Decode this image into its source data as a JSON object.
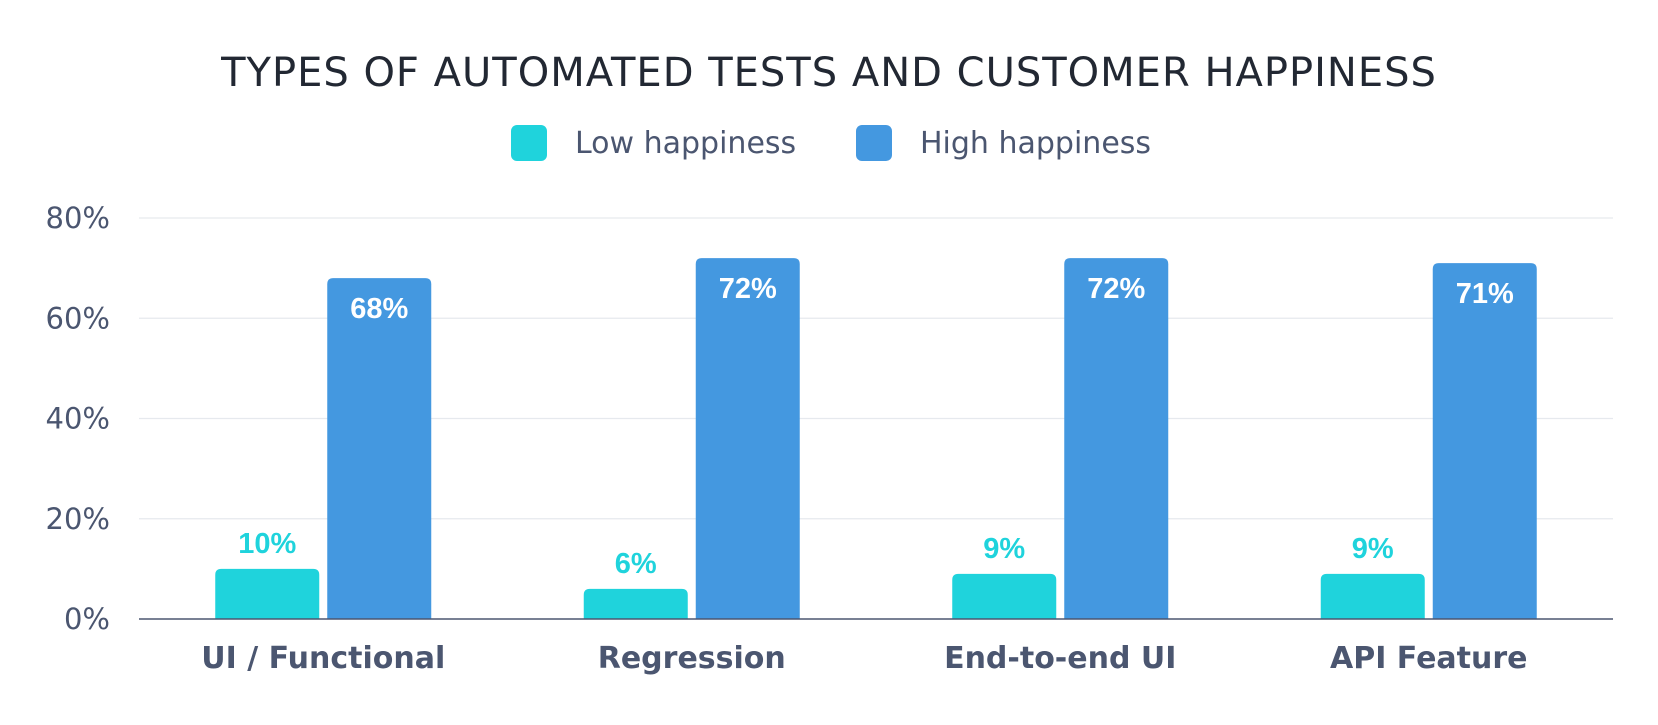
{
  "chart_data": {
    "type": "bar",
    "title": "TYPES OF AUTOMATED TESTS AND CUSTOMER HAPPINESS",
    "categories": [
      "UI / Functional",
      "Regression",
      "End-to-end UI",
      "API Feature"
    ],
    "series": [
      {
        "name": "Low happiness",
        "color": "#1fd3dc",
        "values": [
          10,
          6,
          9,
          9
        ],
        "labels": [
          "10%",
          "6%",
          "9%",
          "9%"
        ]
      },
      {
        "name": "High happiness",
        "color": "#4498e0",
        "values": [
          68,
          72,
          72,
          71
        ],
        "labels": [
          "68%",
          "72%",
          "72%",
          "71%"
        ]
      }
    ],
    "ylim": [
      0,
      80
    ],
    "yticks": [
      {
        "value": 0,
        "label": "0%"
      },
      {
        "value": 20,
        "label": "20%"
      },
      {
        "value": 40,
        "label": "40%"
      },
      {
        "value": 60,
        "label": "60%"
      },
      {
        "value": 80,
        "label": "80%"
      }
    ],
    "xlabel": "",
    "ylabel": "",
    "grid": true,
    "legend_position": "top-center"
  }
}
